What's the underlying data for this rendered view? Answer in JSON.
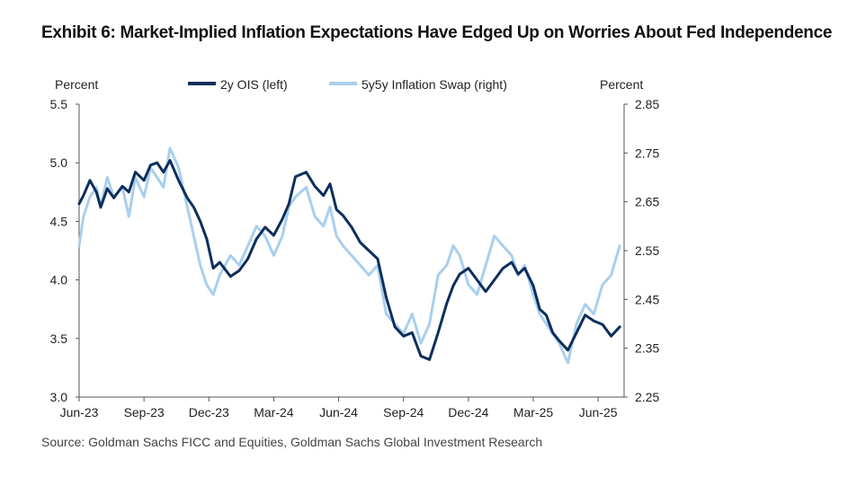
{
  "title": "Exhibit 6: Market-Implied Inflation Expectations Have Edged Up on Worries About Fed Independence",
  "source": "Source: Goldman Sachs FICC and Equities, Goldman Sachs Global Investment Research",
  "chart_data": {
    "type": "line",
    "ylabel_left": "Percent",
    "ylabel_right": "Percent",
    "ylim_left": [
      3.0,
      5.5
    ],
    "ylim_right": [
      2.25,
      2.85
    ],
    "yticks_left": [
      "5.5",
      "5.0",
      "4.5",
      "4.0",
      "3.5",
      "3.0"
    ],
    "yticks_right": [
      "2.85",
      "2.75",
      "2.65",
      "2.55",
      "2.45",
      "2.35",
      "2.25"
    ],
    "xticks": [
      "Jun-23",
      "Sep-23",
      "Dec-23",
      "Mar-24",
      "Jun-24",
      "Sep-24",
      "Dec-24",
      "Mar-25",
      "Jun-25"
    ],
    "xlim": [
      0,
      25.2
    ],
    "colors": {
      "ois": "#0d2f5c",
      "swap": "#a9cfee",
      "axis": "#555555"
    },
    "series": [
      {
        "name": "2y OIS (left)",
        "axis": "left",
        "x": [
          0,
          0.2,
          0.5,
          0.8,
          1.0,
          1.3,
          1.6,
          2.0,
          2.3,
          2.6,
          3.0,
          3.3,
          3.6,
          3.9,
          4.2,
          4.6,
          5.0,
          5.3,
          5.6,
          5.9,
          6.2,
          6.5,
          7.0,
          7.4,
          7.8,
          8.2,
          8.6,
          9.0,
          9.4,
          9.7,
          10.0,
          10.5,
          10.9,
          11.3,
          11.6,
          11.9,
          12.2,
          12.6,
          13.0,
          13.4,
          13.8,
          14.2,
          14.6,
          15.0,
          15.4,
          15.8,
          16.2,
          16.6,
          17.0,
          17.3,
          17.6,
          18.0,
          18.4,
          18.8,
          19.2,
          19.6,
          20.0,
          20.3,
          20.6,
          21.0,
          21.3,
          21.6,
          21.9,
          22.2,
          22.6,
          23.0,
          23.4,
          23.8,
          24.2,
          24.6,
          25.0
        ],
        "values": [
          4.65,
          4.72,
          4.85,
          4.75,
          4.62,
          4.78,
          4.7,
          4.8,
          4.75,
          4.92,
          4.85,
          4.98,
          5.0,
          4.92,
          5.02,
          4.85,
          4.7,
          4.62,
          4.5,
          4.35,
          4.1,
          4.15,
          4.03,
          4.08,
          4.18,
          4.35,
          4.45,
          4.38,
          4.52,
          4.65,
          4.88,
          4.92,
          4.8,
          4.72,
          4.82,
          4.6,
          4.55,
          4.45,
          4.32,
          4.25,
          4.18,
          3.85,
          3.6,
          3.52,
          3.55,
          3.35,
          3.32,
          3.55,
          3.8,
          3.95,
          4.05,
          4.1,
          4.0,
          3.9,
          4.0,
          4.1,
          4.15,
          4.05,
          4.1,
          3.95,
          3.75,
          3.7,
          3.55,
          3.48,
          3.4,
          3.55,
          3.7,
          3.65,
          3.62,
          3.52,
          3.6
        ]
      },
      {
        "name": "5y5y Inflation Swap (right)",
        "axis": "right",
        "x": [
          0,
          0.2,
          0.5,
          0.8,
          1.0,
          1.3,
          1.6,
          2.0,
          2.3,
          2.6,
          3.0,
          3.3,
          3.6,
          3.9,
          4.2,
          4.6,
          5.0,
          5.3,
          5.6,
          5.9,
          6.2,
          6.5,
          7.0,
          7.4,
          7.8,
          8.2,
          8.6,
          9.0,
          9.4,
          9.7,
          10.0,
          10.5,
          10.9,
          11.3,
          11.6,
          11.9,
          12.2,
          12.6,
          13.0,
          13.4,
          13.8,
          14.2,
          14.6,
          15.0,
          15.4,
          15.8,
          16.2,
          16.6,
          17.0,
          17.3,
          17.6,
          18.0,
          18.4,
          18.8,
          19.2,
          19.6,
          20.0,
          20.3,
          20.6,
          21.0,
          21.3,
          21.6,
          21.9,
          22.2,
          22.6,
          23.0,
          23.4,
          23.8,
          24.2,
          24.6,
          25.0
        ],
        "values": [
          2.56,
          2.62,
          2.66,
          2.68,
          2.64,
          2.7,
          2.66,
          2.68,
          2.62,
          2.7,
          2.66,
          2.72,
          2.7,
          2.68,
          2.76,
          2.72,
          2.64,
          2.58,
          2.52,
          2.48,
          2.46,
          2.5,
          2.54,
          2.52,
          2.56,
          2.6,
          2.58,
          2.54,
          2.58,
          2.64,
          2.66,
          2.68,
          2.62,
          2.6,
          2.64,
          2.58,
          2.56,
          2.54,
          2.52,
          2.5,
          2.52,
          2.42,
          2.4,
          2.38,
          2.42,
          2.36,
          2.4,
          2.5,
          2.52,
          2.56,
          2.54,
          2.48,
          2.46,
          2.52,
          2.58,
          2.56,
          2.54,
          2.5,
          2.52,
          2.46,
          2.42,
          2.4,
          2.38,
          2.36,
          2.32,
          2.4,
          2.44,
          2.42,
          2.48,
          2.5,
          2.56
        ]
      }
    ]
  }
}
